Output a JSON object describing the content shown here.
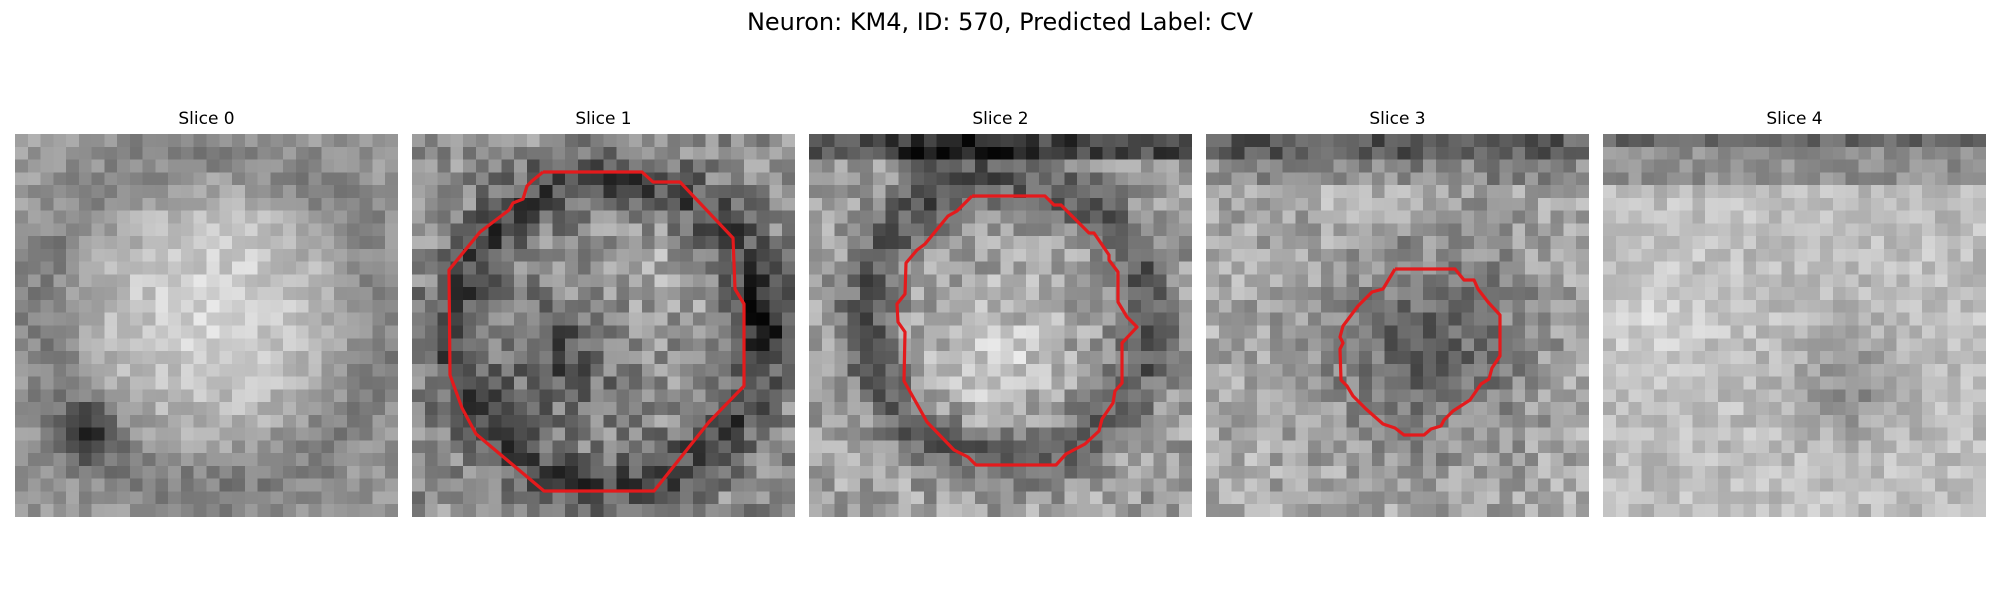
{
  "figure": {
    "title": "Neuron: KM4, ID: 570, Predicted Label: CV"
  },
  "colors": {
    "contour": "#e41a1c",
    "background": "#ffffff",
    "text": "#000000"
  },
  "slices": [
    {
      "label": "Slice 0",
      "has_contour": false
    },
    {
      "label": "Slice 1",
      "has_contour": true
    },
    {
      "label": "Slice 2",
      "has_contour": true
    },
    {
      "label": "Slice 3",
      "has_contour": true
    },
    {
      "label": "Slice 4",
      "has_contour": false
    }
  ]
}
